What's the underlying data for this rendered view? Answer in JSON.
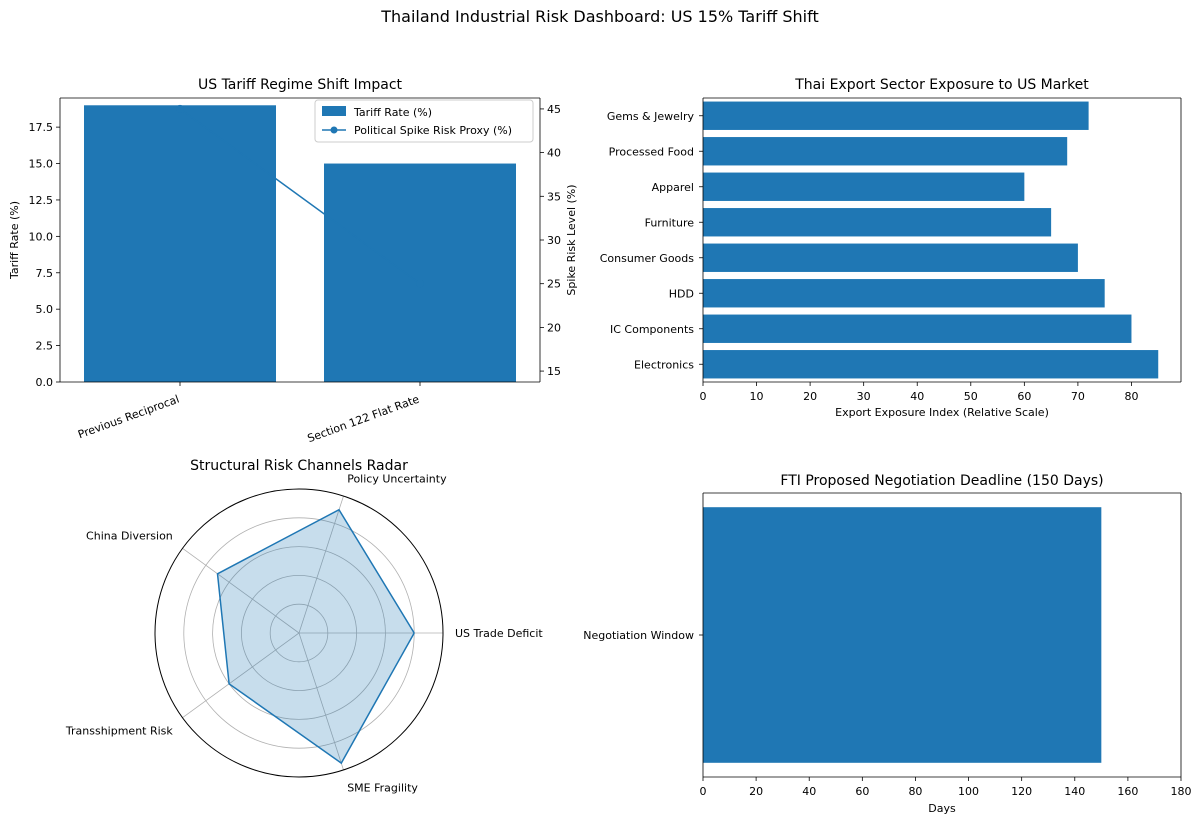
{
  "page": {
    "title": "Thailand Industrial Risk Dashboard: US 15% Tariff Shift"
  },
  "colors": {
    "bar": "#1f77b4",
    "radar_fill": "#1f77b4",
    "grid": "#b0b0b0",
    "axis": "#000000"
  },
  "chart_data": [
    {
      "id": "tariff",
      "type": "bar",
      "title": "US Tariff Regime Shift Impact",
      "categories": [
        "Previous Reciprocal",
        "Section 122 Flat Rate"
      ],
      "series": [
        {
          "name": "Tariff Rate (%)",
          "kind": "bar",
          "axis": "left",
          "values": [
            19,
            15
          ]
        },
        {
          "name": "Political Spike Risk Proxy (%)",
          "kind": "line",
          "axis": "right",
          "values": [
            45,
            25
          ]
        }
      ],
      "ylabel": "Tariff Rate (%)",
      "y2label": "Spike Risk Level (%)",
      "ylim": [
        0,
        19.5
      ],
      "y2lim": [
        13.75,
        46.25
      ],
      "yticks": [
        0,
        2.5,
        5,
        7.5,
        10,
        12.5,
        15,
        17.5
      ],
      "ytick_labels": [
        "0.0",
        "2.5",
        "5.0",
        "7.5",
        "10.0",
        "12.5",
        "15.0",
        "17.5"
      ],
      "y2ticks": [
        15,
        20,
        25,
        30,
        35,
        40,
        45
      ],
      "y2tick_labels": [
        "15",
        "20",
        "25",
        "30",
        "35",
        "40",
        "45"
      ],
      "legend_position": "upper-right",
      "grid": false
    },
    {
      "id": "exposure",
      "type": "bar",
      "orientation": "horizontal",
      "title": "Thai Export Sector Exposure to US Market",
      "categories": [
        "Electronics",
        "IC Components",
        "HDD",
        "Consumer Goods",
        "Furniture",
        "Apparel",
        "Processed Food",
        "Gems & Jewelry"
      ],
      "values": [
        85,
        80,
        75,
        70,
        65,
        60,
        68,
        72
      ],
      "xlabel": "Export Exposure Index (Relative Scale)",
      "xlim": [
        0,
        89.25
      ],
      "xticks": [
        0,
        10,
        20,
        30,
        40,
        50,
        60,
        70,
        80
      ],
      "xtick_labels": [
        "0",
        "10",
        "20",
        "30",
        "40",
        "50",
        "60",
        "70",
        "80"
      ],
      "grid": false
    },
    {
      "id": "radar",
      "type": "radar",
      "title": "Structural Risk Channels Radar",
      "categories": [
        "US Trade Deficit",
        "Policy Uncertainty",
        "China Diversion",
        "Transshipment Risk",
        "SME Fragility"
      ],
      "values": [
        80,
        90,
        70,
        60,
        95
      ],
      "rlim": [
        0,
        100
      ],
      "rgrid": [
        20,
        40,
        60,
        80
      ],
      "grid": true
    },
    {
      "id": "deadline",
      "type": "bar",
      "orientation": "horizontal",
      "title": "FTI Proposed Negotiation Deadline (150 Days)",
      "categories": [
        "Negotiation Window"
      ],
      "values": [
        150
      ],
      "xlabel": "Days",
      "xlim": [
        0,
        180
      ],
      "xticks": [
        0,
        20,
        40,
        60,
        80,
        100,
        120,
        140,
        160,
        180
      ],
      "xtick_labels": [
        "0",
        "20",
        "40",
        "60",
        "80",
        "100",
        "120",
        "140",
        "160",
        "180"
      ],
      "grid": false
    }
  ]
}
